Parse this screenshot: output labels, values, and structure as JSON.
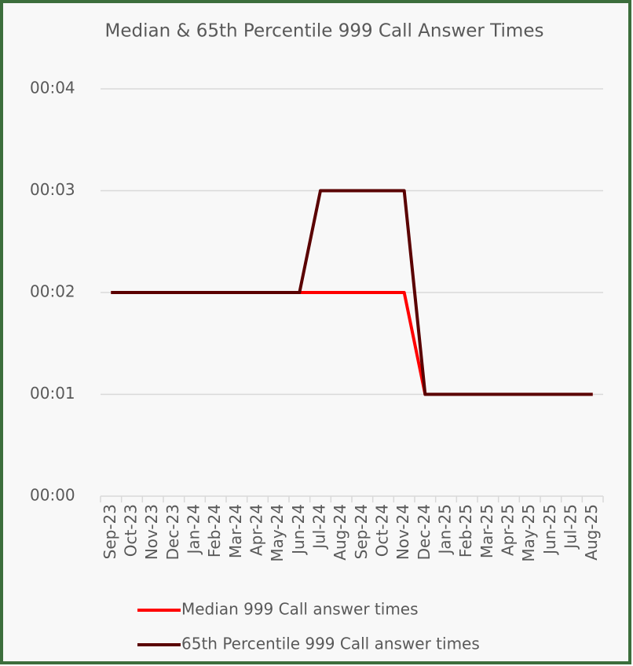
{
  "chart_data": {
    "type": "line",
    "title": "Median & 65th Percentile 999 Call Answer Times",
    "categories": [
      "Sep-23",
      "Oct-23",
      "Nov-23",
      "Dec-23",
      "Jan-24",
      "Feb-24",
      "Mar-24",
      "Apr-24",
      "May-24",
      "Jun-24",
      "Jul-24",
      "Aug-24",
      "Sep-24",
      "Oct-24",
      "Nov-24",
      "Dec-24",
      "Jan-25",
      "Feb-25",
      "Mar-25",
      "Apr-25",
      "May-25",
      "Jun-25",
      "Jul-25",
      "Aug-25"
    ],
    "series": [
      {
        "name": "Median 999 Call answer times",
        "color": "#ff0000",
        "values": [
          2,
          2,
          2,
          2,
          2,
          2,
          2,
          2,
          2,
          2,
          2,
          2,
          2,
          2,
          2,
          1,
          1,
          1,
          1,
          1,
          1,
          1,
          1,
          1
        ]
      },
      {
        "name": "65th Percentile 999 Call answer times",
        "color": "#5a0000",
        "values": [
          2,
          2,
          2,
          2,
          2,
          2,
          2,
          2,
          2,
          2,
          3,
          3,
          3,
          3,
          3,
          1,
          1,
          1,
          1,
          1,
          1,
          1,
          1,
          1
        ]
      }
    ],
    "ylim": [
      0,
      4
    ],
    "yticks": [
      {
        "value": 0,
        "label": "00:00"
      },
      {
        "value": 1,
        "label": "00:01"
      },
      {
        "value": 2,
        "label": "00:02"
      },
      {
        "value": 3,
        "label": "00:03"
      },
      {
        "value": 4,
        "label": "00:04"
      }
    ],
    "grid": true
  }
}
